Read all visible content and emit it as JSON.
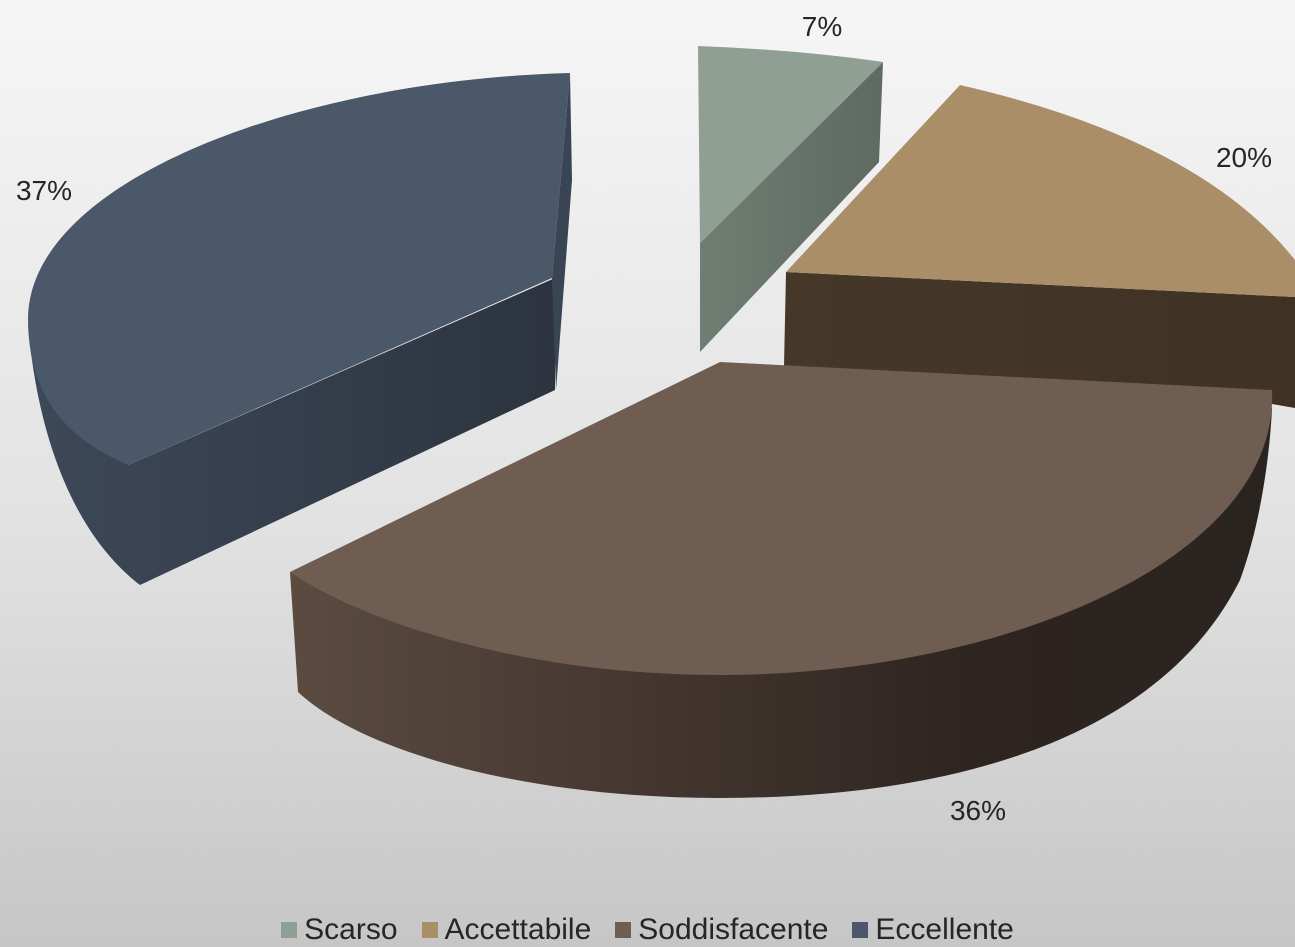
{
  "chart_data": {
    "type": "pie",
    "style": "3d-exploded",
    "legend_position": "bottom",
    "slices": [
      {
        "label": "Scarso",
        "value": 7,
        "data_label": "7%",
        "color": "#909f94"
      },
      {
        "label": "Accettabile",
        "value": 20,
        "data_label": "20%",
        "color": "#aa8e67"
      },
      {
        "label": "Soddisfacente",
        "value": 36,
        "data_label": "36%",
        "color": "#6f5d52"
      },
      {
        "label": "Eccellente",
        "value": 37,
        "data_label": "37%",
        "color": "#4a5869"
      }
    ]
  }
}
